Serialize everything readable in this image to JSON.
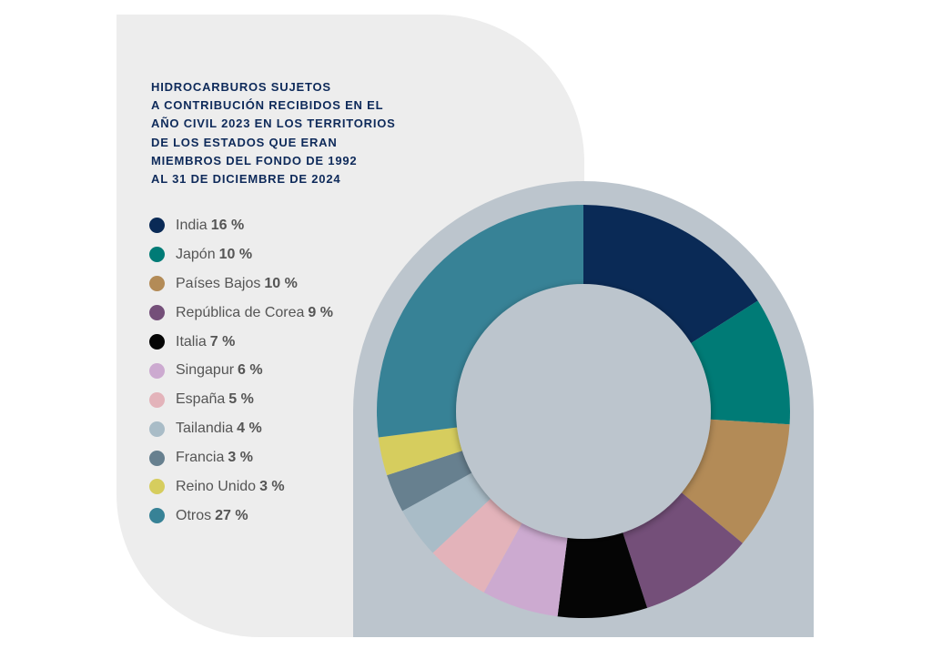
{
  "title_lines": [
    "HIDROCARBUROS SUJETOS",
    "A CONTRIBUCIÓN RECIBIDOS EN EL",
    "AÑO CIVIL 2023 EN LOS TERRITORIOS",
    "DE LOS ESTADOS QUE ERAN",
    "MIEMBROS DEL FONDO DE 1992",
    "AL 31 DE DICIEMBRE DE 2024"
  ],
  "colors": {
    "panel_background": "#ededed",
    "donut_background": "#bcc5cd",
    "title": "#0e2a5a",
    "legend_text": "#555555"
  },
  "chart_data": {
    "type": "pie",
    "variant": "donut",
    "start_angle_deg": 0,
    "direction": "clockwise",
    "unit": "%",
    "legend_placement": "left",
    "categories": [
      "India",
      "Japón",
      "Países Bajos",
      "República de Corea",
      "Italia",
      "Singapur",
      "España",
      "Tailandia",
      "Francia",
      "Reino Unido",
      "Otros"
    ],
    "values": [
      16,
      10,
      10,
      9,
      7,
      6,
      5,
      4,
      3,
      3,
      27
    ],
    "value_labels": [
      "16 %",
      "10 %",
      "10 %",
      "9 %",
      "7 %",
      "6 %",
      "5 %",
      "4 %",
      "3 %",
      "3 %",
      "27 %"
    ],
    "colors": [
      "#0a2a56",
      "#007b76",
      "#b38b57",
      "#744f79",
      "#050505",
      "#ccaad0",
      "#e3b3ba",
      "#a9bcc7",
      "#67808f",
      "#d6cd5e",
      "#378296"
    ]
  }
}
